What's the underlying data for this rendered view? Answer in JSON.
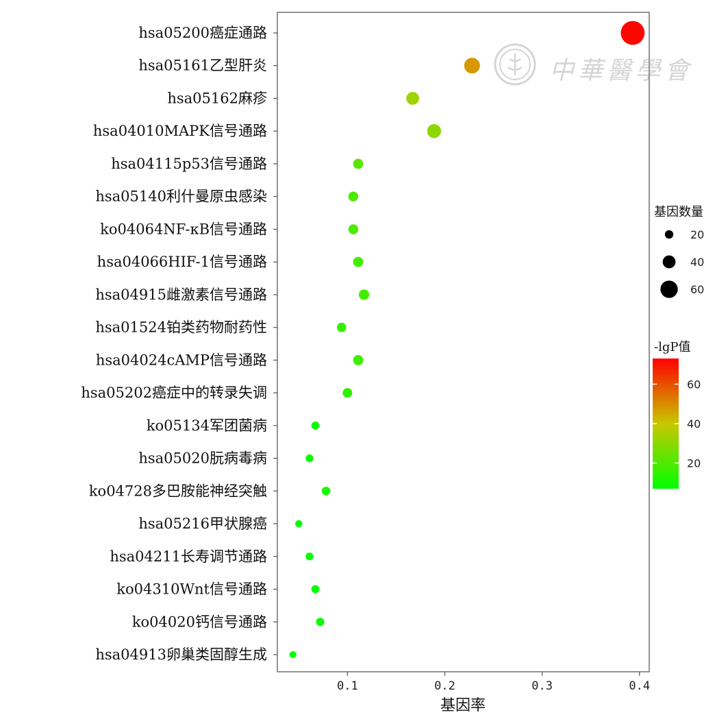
{
  "chart_data": {
    "type": "scatter",
    "xlabel": "基因率",
    "xlim": [
      0.028,
      0.41
    ],
    "x_ticks": [
      "0.1",
      "0.2",
      "0.3",
      "0.4"
    ],
    "categories": [
      "hsa05200癌症通路",
      "hsa05161乙型肝炎",
      "hsa05162麻疹",
      "hsa04010MAPK信号通路",
      "hsa04115p53信号通路",
      "hsa05140利什曼原虫感染",
      "ko04064NF-κB信号通路",
      "hsa04066HIF-1信号通路",
      "hsa04915雌激素信号通路",
      "hsa01524铂类药物耐药性",
      "hsa04024cAMP信号通路",
      "hsa05202癌症中的转录失调",
      "ko05134军团菌病",
      "hsa05020朊病毒病",
      "ko04728多巴胺能神经突触",
      "hsa05216甲状腺癌",
      "hsa04211长寿调节通路",
      "ko04310Wnt信号通路",
      "ko04020钙信号通路",
      "hsa04913卵巢类固醇生成"
    ],
    "gene_ratio": [
      0.393,
      0.228,
      0.167,
      0.189,
      0.111,
      0.106,
      0.106,
      0.111,
      0.117,
      0.094,
      0.111,
      0.1,
      0.067,
      0.061,
      0.078,
      0.05,
      0.061,
      0.067,
      0.072,
      0.044
    ],
    "gene_count": [
      71,
      41,
      30,
      34,
      20,
      19,
      19,
      20,
      21,
      17,
      20,
      18,
      12,
      11,
      14,
      9,
      11,
      12,
      13,
      8
    ],
    "neg_log_p": [
      72,
      48,
      33,
      30,
      22,
      20,
      19,
      18,
      18,
      16,
      17,
      15,
      9,
      9,
      11,
      8,
      8,
      8,
      9,
      7
    ],
    "legend_size": {
      "title": "基因数量",
      "labels": [
        "20",
        "40",
        "60"
      ],
      "values": [
        20,
        40,
        60
      ]
    },
    "legend_color": {
      "title": "-lgP值",
      "labels": [
        "20",
        "40",
        "60"
      ],
      "values": [
        20,
        40,
        60
      ],
      "range": [
        7,
        73
      ],
      "colors": [
        "#00ff00",
        "#c8c800",
        "#ff0000"
      ]
    },
    "grid": false,
    "legend_position": "right"
  },
  "watermark": {
    "text": "中華醫學會"
  }
}
